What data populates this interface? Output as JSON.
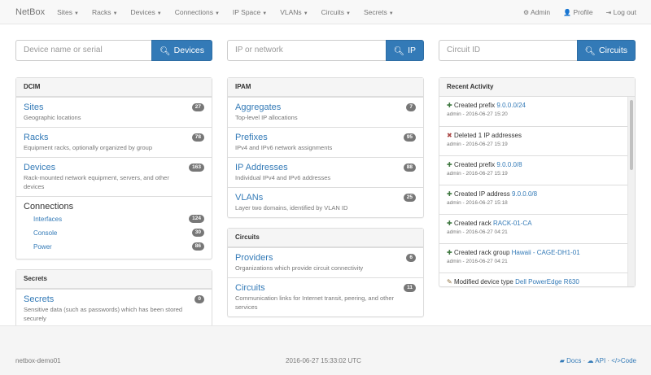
{
  "nav": {
    "brand": "NetBox",
    "menus": [
      "Sites",
      "Racks",
      "Devices",
      "Connections",
      "IP Space",
      "VLANs",
      "Circuits",
      "Secrets"
    ],
    "right": [
      {
        "icon": "gear-icon",
        "label": "Admin"
      },
      {
        "icon": "user-icon",
        "label": "Profile"
      },
      {
        "icon": "logout-icon",
        "label": "Log out"
      }
    ]
  },
  "searches": [
    {
      "placeholder": "Device name or serial",
      "button": "Devices"
    },
    {
      "placeholder": "IP or network",
      "button": "IP"
    },
    {
      "placeholder": "Circuit ID",
      "button": "Circuits"
    }
  ],
  "dcim": {
    "title": "DCIM",
    "items": [
      {
        "title": "Sites",
        "desc": "Geographic locations",
        "count": "27"
      },
      {
        "title": "Racks",
        "desc": "Equipment racks, optionally organized by group",
        "count": "78"
      },
      {
        "title": "Devices",
        "desc": "Rack-mounted network equipment, servers, and other devices",
        "count": "163"
      }
    ],
    "connections": {
      "title": "Connections",
      "items": [
        {
          "title": "Interfaces",
          "count": "124"
        },
        {
          "title": "Console",
          "count": "30"
        },
        {
          "title": "Power",
          "count": "86"
        }
      ]
    }
  },
  "secrets": {
    "title": "Secrets",
    "items": [
      {
        "title": "Secrets",
        "desc": "Sensitive data (such as passwords) which has been stored securely",
        "count": "0"
      }
    ]
  },
  "ipam": {
    "title": "IPAM",
    "items": [
      {
        "title": "Aggregates",
        "desc": "Top-level IP allocations",
        "count": "7"
      },
      {
        "title": "Prefixes",
        "desc": "IPv4 and IPv6 network assignments",
        "count": "95"
      },
      {
        "title": "IP Addresses",
        "desc": "Individual IPv4 and IPv6 addresses",
        "count": "88"
      },
      {
        "title": "VLANs",
        "desc": "Layer two domains, identified by VLAN ID",
        "count": "25"
      }
    ]
  },
  "circuits": {
    "title": "Circuits",
    "items": [
      {
        "title": "Providers",
        "desc": "Organizations which provide circuit connectivity",
        "count": "6"
      },
      {
        "title": "Circuits",
        "desc": "Communication links for Internet transit, peering, and other services",
        "count": "11"
      }
    ]
  },
  "activity": {
    "title": "Recent Activity",
    "items": [
      {
        "icon": "plus-icon",
        "text": "Created prefix",
        "link": "9.0.0.0/24",
        "meta": "admin - 2016-06-27 15:20"
      },
      {
        "icon": "times-icon",
        "text": "Deleted 1 IP addresses",
        "link": "",
        "meta": "admin - 2016-06-27 15:19"
      },
      {
        "icon": "plus-icon",
        "text": "Created prefix",
        "link": "9.0.0.0/8",
        "meta": "admin - 2016-06-27 15:19"
      },
      {
        "icon": "plus-icon",
        "text": "Created IP address",
        "link": "9.0.0.0/8",
        "meta": "admin - 2016-06-27 15:18"
      },
      {
        "icon": "plus-icon",
        "text": "Created rack",
        "link": "RACK-01-CA",
        "meta": "admin - 2016-06-27 04:21"
      },
      {
        "icon": "plus-icon",
        "text": "Created rack group",
        "link": "Hawaii - CAGE-DH1-01",
        "meta": "admin - 2016-06-27 04:21"
      },
      {
        "icon": "pencil-icon",
        "text": "Modified device type",
        "link": "Dell PowerEdge R630",
        "meta": ""
      }
    ]
  },
  "footer": {
    "hostname": "netbox-demo01",
    "time": "2016-06-27 15:33:02 UTC",
    "links": [
      "Docs",
      "API",
      "Code"
    ]
  },
  "colors": {
    "link": "#337ab7",
    "created": "#3c763d",
    "deleted": "#a94442",
    "badge": "#777777"
  }
}
